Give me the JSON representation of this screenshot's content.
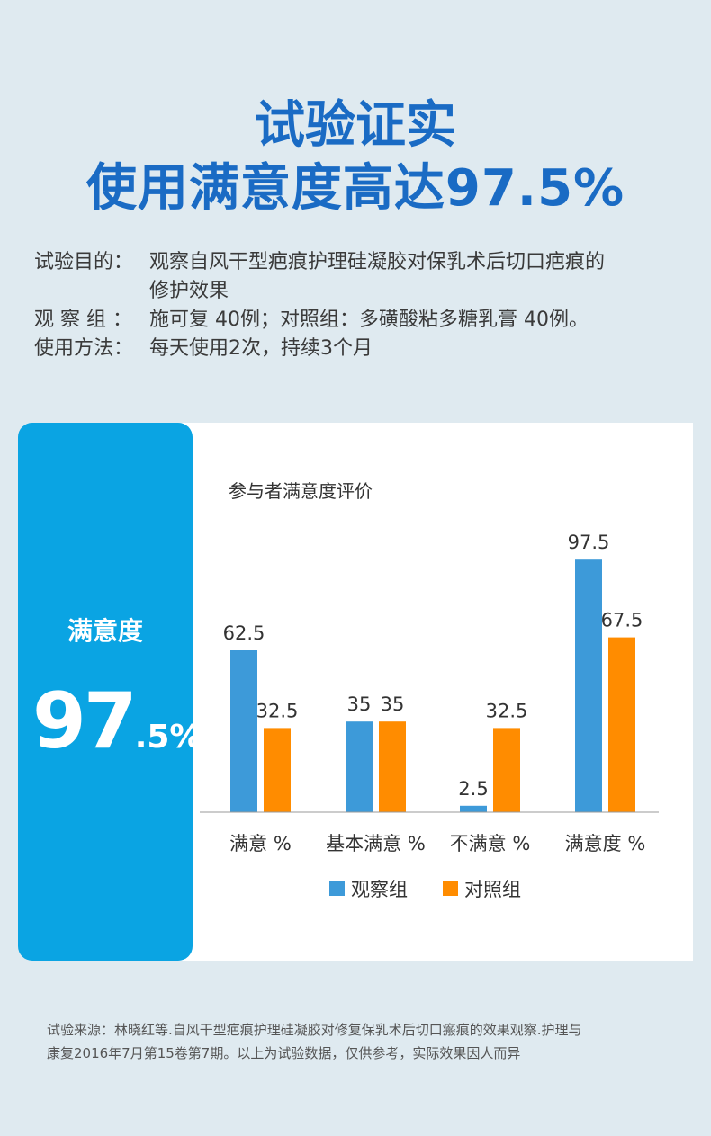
{
  "headline": {
    "line1": "试验证实",
    "line2": "使用满意度高达97.5%"
  },
  "info": {
    "purpose_label": "试验目的：",
    "purpose_text_1": "观察自风干型疤痕护理硅凝胶对保乳术后切口疤痕的",
    "purpose_text_2": "修护效果",
    "group_label": "观 察 组 ：",
    "group_text": "施可复 40例；对照组：多磺酸粘多糖乳膏 40例。",
    "method_label": "使用方法：",
    "method_text": "每天使用2次，持续3个月"
  },
  "highlight": {
    "label": "满意度",
    "value_big": "97",
    "value_small": ".5%"
  },
  "chart_data": {
    "type": "bar",
    "title": "参与者满意度评价",
    "categories": [
      "满意 %",
      "基本满意 %",
      "不满意 %",
      "满意度  %"
    ],
    "series": [
      {
        "name": "观察组",
        "values": [
          62.5,
          35,
          2.5,
          97.5
        ],
        "color": "#3d9ad9"
      },
      {
        "name": "对照组",
        "values": [
          32.5,
          35,
          32.5,
          67.5
        ],
        "color": "#ff8c00"
      }
    ],
    "value_labels": [
      [
        "62.5",
        "35",
        "2.5",
        "97.5"
      ],
      [
        "32.5",
        "35",
        "32.5",
        "67.5"
      ]
    ],
    "ylim": [
      0,
      100
    ],
    "grid": false,
    "legend_position": "bottom"
  },
  "footer": {
    "line1": "试验来源：林晓红等.自风干型疤痕护理硅凝胶对修复保乳术后切口瘢痕的效果观察.护理与",
    "line2": "康复2016年7月第15卷第7期。以上为试验数据，仅供参考，实际效果因人而异"
  }
}
